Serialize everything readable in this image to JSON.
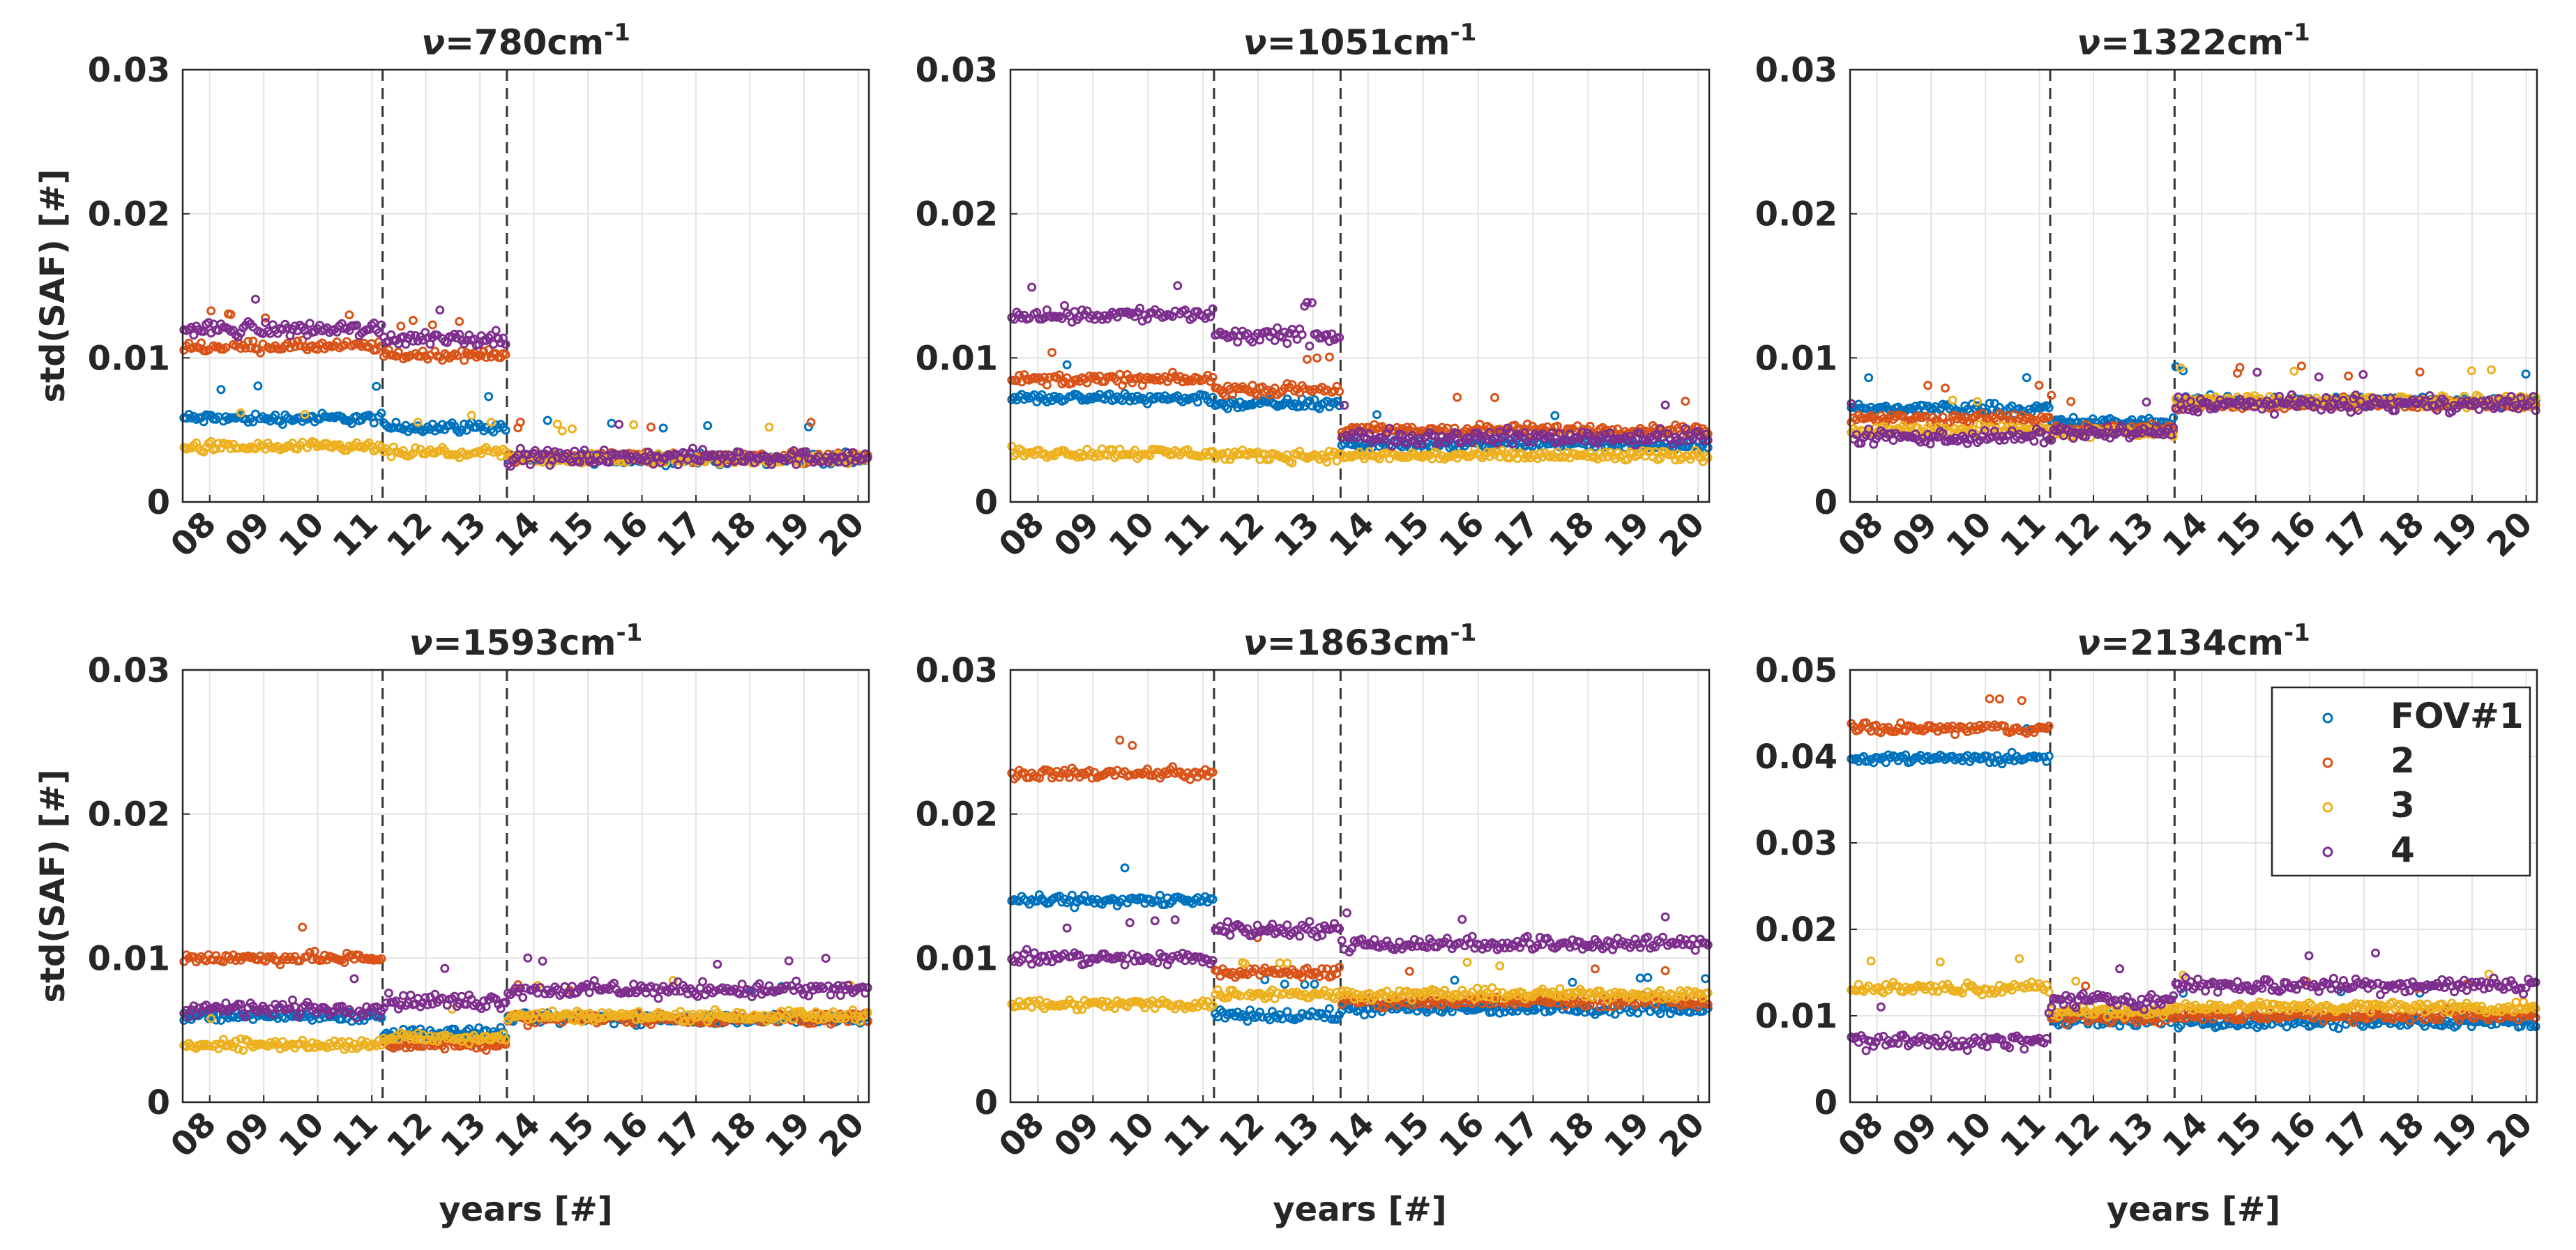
{
  "chart_data": [
    {
      "type": "scatter",
      "title_prefix": "ν=",
      "title_value": "780cm",
      "title_exp": "-1",
      "ylabel": "std(SAF) [#]",
      "xlabel": "",
      "ylim": [
        0,
        0.03
      ],
      "yticks": [
        "0",
        "0.01",
        "0.02",
        "0.03"
      ],
      "xticks": [
        "08",
        "09",
        "10",
        "11",
        "12",
        "13",
        "14",
        "15",
        "16",
        "17",
        "18",
        "19",
        "20"
      ],
      "xlim": [
        2007.5,
        2020.2
      ],
      "vlines": [
        2011.2,
        2013.5
      ],
      "grid": true,
      "segments": [
        {
          "start": 2007.5,
          "end": 2011.2,
          "levels": [
            0.0058,
            0.0108,
            0.0038,
            0.012
          ]
        },
        {
          "start": 2011.2,
          "end": 2013.5,
          "levels": [
            0.0052,
            0.0102,
            0.0034,
            0.0114
          ]
        },
        {
          "start": 2013.5,
          "end": 2020.2,
          "levels": [
            0.003,
            0.0031,
            0.003,
            0.0031
          ]
        }
      ]
    },
    {
      "type": "scatter",
      "title_prefix": "ν=",
      "title_value": "1051cm",
      "title_exp": "-1",
      "ylabel": "",
      "xlabel": "",
      "ylim": [
        0,
        0.03
      ],
      "yticks": [
        "0",
        "0.01",
        "0.02",
        "0.03"
      ],
      "xticks": [
        "08",
        "09",
        "10",
        "11",
        "12",
        "13",
        "14",
        "15",
        "16",
        "17",
        "18",
        "19",
        "20"
      ],
      "xlim": [
        2007.5,
        2020.2
      ],
      "vlines": [
        2011.2,
        2013.5
      ],
      "grid": true,
      "segments": [
        {
          "start": 2007.5,
          "end": 2011.2,
          "levels": [
            0.0072,
            0.0085,
            0.0034,
            0.013
          ]
        },
        {
          "start": 2011.2,
          "end": 2013.5,
          "levels": [
            0.0068,
            0.0078,
            0.0032,
            0.0115
          ]
        },
        {
          "start": 2013.5,
          "end": 2020.2,
          "levels": [
            0.004,
            0.005,
            0.0032,
            0.0045
          ]
        }
      ]
    },
    {
      "type": "scatter",
      "title_prefix": "ν=",
      "title_value": "1322cm",
      "title_exp": "-1",
      "ylabel": "",
      "xlabel": "",
      "ylim": [
        0,
        0.03
      ],
      "yticks": [
        "0",
        "0.01",
        "0.02",
        "0.03"
      ],
      "xticks": [
        "08",
        "09",
        "10",
        "11",
        "12",
        "13",
        "14",
        "15",
        "16",
        "17",
        "18",
        "19",
        "20"
      ],
      "xlim": [
        2007.5,
        2020.2
      ],
      "vlines": [
        2011.2,
        2013.5
      ],
      "grid": true,
      "segments": [
        {
          "start": 2007.5,
          "end": 2011.2,
          "levels": [
            0.0065,
            0.0058,
            0.005,
            0.0045
          ]
        },
        {
          "start": 2011.2,
          "end": 2013.5,
          "levels": [
            0.0055,
            0.005,
            0.0048,
            0.0048
          ]
        },
        {
          "start": 2013.5,
          "end": 2020.2,
          "levels": [
            0.007,
            0.0068,
            0.007,
            0.0068
          ]
        }
      ]
    },
    {
      "type": "scatter",
      "title_prefix": "ν=",
      "title_value": "1593cm",
      "title_exp": "-1",
      "ylabel": "std(SAF) [#]",
      "xlabel": "years [#]",
      "ylim": [
        0,
        0.03
      ],
      "yticks": [
        "0",
        "0.01",
        "0.02",
        "0.03"
      ],
      "xticks": [
        "08",
        "09",
        "10",
        "11",
        "12",
        "13",
        "14",
        "15",
        "16",
        "17",
        "18",
        "19",
        "20"
      ],
      "xlim": [
        2007.5,
        2020.2
      ],
      "vlines": [
        2011.2,
        2013.5
      ],
      "grid": true,
      "segments": [
        {
          "start": 2007.5,
          "end": 2011.2,
          "levels": [
            0.006,
            0.01,
            0.004,
            0.0065
          ]
        },
        {
          "start": 2011.2,
          "end": 2013.5,
          "levels": [
            0.0048,
            0.004,
            0.0045,
            0.007
          ]
        },
        {
          "start": 2013.5,
          "end": 2020.2,
          "levels": [
            0.0058,
            0.0058,
            0.006,
            0.0078
          ]
        }
      ]
    },
    {
      "type": "scatter",
      "title_prefix": "ν=",
      "title_value": "1863cm",
      "title_exp": "-1",
      "ylabel": "",
      "xlabel": "years [#]",
      "ylim": [
        0,
        0.03
      ],
      "yticks": [
        "0",
        "0.01",
        "0.02",
        "0.03"
      ],
      "xticks": [
        "08",
        "09",
        "10",
        "11",
        "12",
        "13",
        "14",
        "15",
        "16",
        "17",
        "18",
        "19",
        "20"
      ],
      "xlim": [
        2007.5,
        2020.2
      ],
      "vlines": [
        2011.2,
        2013.5
      ],
      "grid": true,
      "segments": [
        {
          "start": 2007.5,
          "end": 2011.2,
          "levels": [
            0.014,
            0.0228,
            0.0068,
            0.01
          ]
        },
        {
          "start": 2011.2,
          "end": 2013.5,
          "levels": [
            0.006,
            0.009,
            0.0075,
            0.012
          ]
        },
        {
          "start": 2013.5,
          "end": 2020.2,
          "levels": [
            0.0065,
            0.007,
            0.0075,
            0.011
          ]
        }
      ]
    },
    {
      "type": "scatter",
      "title_prefix": "ν=",
      "title_value": "2134cm",
      "title_exp": "-1",
      "ylabel": "",
      "xlabel": "years [#]",
      "ylim": [
        0,
        0.05
      ],
      "yticks": [
        "0",
        "0.01",
        "0.02",
        "0.03",
        "0.04",
        "0.05"
      ],
      "xticks": [
        "08",
        "09",
        "10",
        "11",
        "12",
        "13",
        "14",
        "15",
        "16",
        "17",
        "18",
        "19",
        "20"
      ],
      "xlim": [
        2007.5,
        2020.2
      ],
      "vlines": [
        2011.2,
        2013.5
      ],
      "grid": true,
      "segments": [
        {
          "start": 2007.5,
          "end": 2011.2,
          "levels": [
            0.0398,
            0.0432,
            0.0132,
            0.007
          ]
        },
        {
          "start": 2011.2,
          "end": 2013.5,
          "levels": [
            0.0095,
            0.0098,
            0.0105,
            0.0118
          ]
        },
        {
          "start": 2013.5,
          "end": 2020.2,
          "levels": [
            0.0092,
            0.01,
            0.011,
            0.0135
          ]
        }
      ]
    }
  ],
  "legend": {
    "location": "top-right",
    "entries": [
      "FOV#1",
      "2",
      "3",
      "4"
    ]
  },
  "series_colors": [
    "#0072BD",
    "#D95319",
    "#EDB120",
    "#7E2F8E"
  ]
}
